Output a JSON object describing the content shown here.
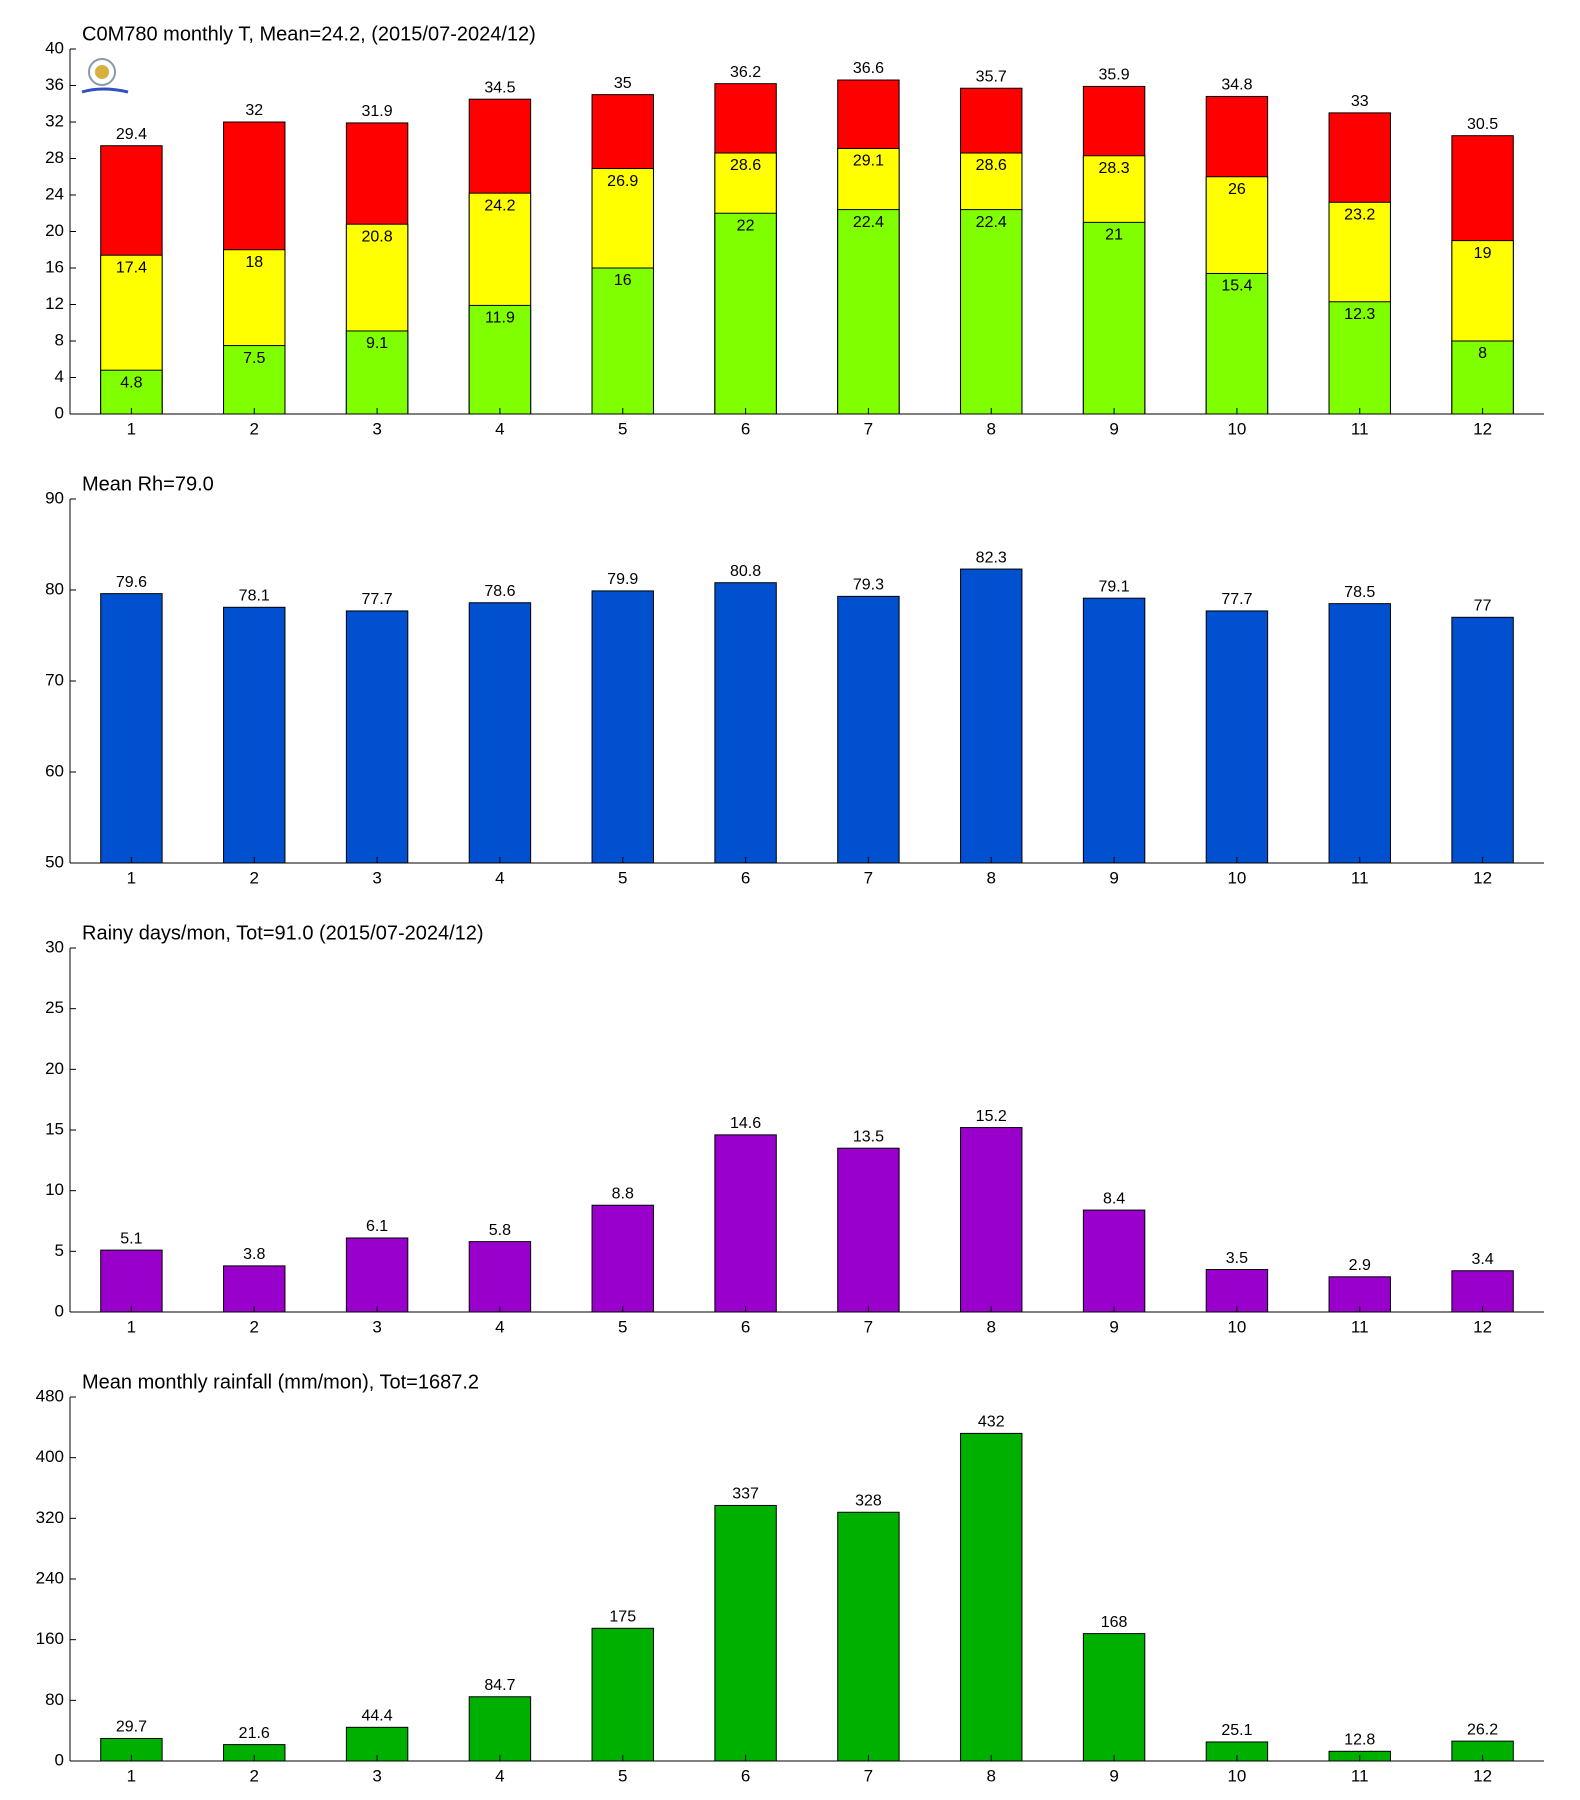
{
  "chart_data": [
    {
      "type": "bar",
      "barmode": "overlay",
      "title": "C0M780 monthly T, Mean=24.2, (2015/07-2024/12)",
      "categories": [
        "1",
        "2",
        "3",
        "4",
        "5",
        "6",
        "7",
        "8",
        "9",
        "10",
        "11",
        "12"
      ],
      "series": [
        {
          "color": "#ff0000",
          "values": [
            29.4,
            32,
            31.9,
            34.5,
            35,
            36.2,
            36.6,
            35.7,
            35.9,
            34.8,
            33,
            30.5
          ]
        },
        {
          "color": "#ffff00",
          "values": [
            17.4,
            18,
            20.8,
            24.2,
            26.9,
            28.6,
            29.1,
            28.6,
            28.3,
            26,
            23.2,
            19
          ]
        },
        {
          "color": "#80ff00",
          "values": [
            4.8,
            7.5,
            9.1,
            11.9,
            16,
            22,
            22.4,
            22.4,
            21,
            15.4,
            12.3,
            8
          ]
        }
      ],
      "ylim": [
        0,
        40
      ],
      "yticks": [
        0,
        4,
        8,
        12,
        16,
        20,
        24,
        28,
        32,
        36,
        40
      ]
    },
    {
      "type": "bar",
      "title": "Mean Rh=79.0",
      "categories": [
        "1",
        "2",
        "3",
        "4",
        "5",
        "6",
        "7",
        "8",
        "9",
        "10",
        "11",
        "12"
      ],
      "series": [
        {
          "color": "#0050d0",
          "values": [
            79.6,
            78.1,
            77.7,
            78.6,
            79.9,
            80.8,
            79.3,
            82.3,
            79.1,
            77.7,
            78.5,
            77
          ]
        }
      ],
      "ylim": [
        50,
        90
      ],
      "yticks": [
        50,
        60,
        70,
        80,
        90
      ]
    },
    {
      "type": "bar",
      "title": "Rainy days/mon, Tot=91.0 (2015/07-2024/12)",
      "categories": [
        "1",
        "2",
        "3",
        "4",
        "5",
        "6",
        "7",
        "8",
        "9",
        "10",
        "11",
        "12"
      ],
      "series": [
        {
          "color": "#9900cc",
          "values": [
            5.1,
            3.8,
            6.1,
            5.8,
            8.8,
            14.6,
            13.5,
            15.2,
            8.4,
            3.5,
            2.9,
            3.4
          ]
        }
      ],
      "ylim": [
        0,
        30
      ],
      "yticks": [
        0,
        5,
        10,
        15,
        20,
        25,
        30
      ]
    },
    {
      "type": "bar",
      "title": "Mean monthly rainfall (mm/mon), Tot=1687.2",
      "categories": [
        "1",
        "2",
        "3",
        "4",
        "5",
        "6",
        "7",
        "8",
        "9",
        "10",
        "11",
        "12"
      ],
      "series": [
        {
          "color": "#00b000",
          "values": [
            29.7,
            21.6,
            44.4,
            84.7,
            175,
            337,
            328,
            432,
            168,
            25.1,
            12.8,
            26.2
          ]
        }
      ],
      "ylim": [
        0,
        480
      ],
      "yticks": [
        0,
        80,
        160,
        240,
        320,
        400,
        480
      ]
    }
  ]
}
